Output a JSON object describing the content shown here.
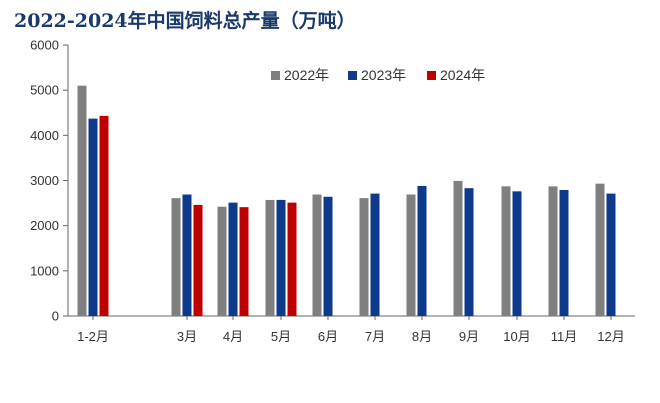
{
  "chart_data": {
    "type": "bar",
    "title": "2022-2024年中国饲料总产量（万吨）",
    "xlabel": "",
    "ylabel": "",
    "ylim": [
      0,
      6000
    ],
    "yticks": [
      0,
      1000,
      2000,
      3000,
      4000,
      5000,
      6000
    ],
    "categories": [
      "1-2月",
      "3月",
      "4月",
      "5月",
      "6月",
      "7月",
      "8月",
      "9月",
      "10月",
      "11月",
      "12月"
    ],
    "legend_position": "top-right",
    "grid": false,
    "series": [
      {
        "name": "2022年",
        "color": "#7f7f7f",
        "values": [
          5100,
          2610,
          2420,
          2570,
          2690,
          2610,
          2690,
          2990,
          2870,
          2870,
          2930
        ]
      },
      {
        "name": "2023年",
        "color": "#0e3a8c",
        "values": [
          4370,
          2690,
          2510,
          2570,
          2640,
          2710,
          2880,
          2830,
          2760,
          2790,
          2710
        ]
      },
      {
        "name": "2024年",
        "color": "#c00000",
        "values": [
          4430,
          2460,
          2410,
          2510,
          null,
          null,
          null,
          null,
          null,
          null,
          null
        ]
      }
    ]
  }
}
